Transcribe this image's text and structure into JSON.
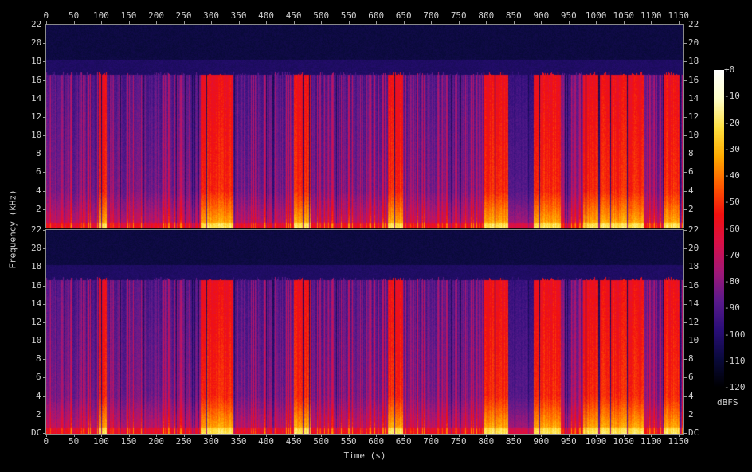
{
  "chart_data": {
    "type": "heatmap",
    "subtype": "spectrogram",
    "channels": 2,
    "xlabel": "Time (s)",
    "ylabel": "Frequency (kHz)",
    "xlim": [
      0,
      1159
    ],
    "ylim": [
      0,
      22
    ],
    "x_ticks": [
      "0",
      "50",
      "100",
      "150",
      "200",
      "250",
      "300",
      "350",
      "400",
      "450",
      "500",
      "550",
      "600",
      "650",
      "700",
      "750",
      "800",
      "850",
      "900",
      "950",
      "1000",
      "1050",
      "1100",
      "1150"
    ],
    "y_ticks_top_panel": [
      "2",
      "4",
      "6",
      "8",
      "10",
      "12",
      "14",
      "16",
      "18",
      "20",
      "22"
    ],
    "y_ticks_bottom_panel": [
      "DC",
      "2",
      "4",
      "6",
      "8",
      "10",
      "12",
      "14",
      "16",
      "18",
      "20",
      "22"
    ],
    "colorbar": {
      "label": "dBFS",
      "range": [
        -120,
        0
      ],
      "ticks": [
        "+0",
        "-10",
        "-20",
        "-30",
        "-40",
        "-50",
        "-60",
        "-70",
        "-80",
        "-90",
        "-100",
        "-110",
        "-120"
      ],
      "colors": [
        "#000000",
        "#0a0a3c",
        "#2a0e78",
        "#5a1a8c",
        "#a01878",
        "#d8104a",
        "#f21010",
        "#ff5a00",
        "#ffaa00",
        "#ffe040",
        "#ffffc8",
        "#ffffff"
      ]
    },
    "lowpass_cutoff_khz": 16.5,
    "loud_segments_s": [
      [
        95,
        110
      ],
      [
        280,
        340
      ],
      [
        450,
        480
      ],
      [
        620,
        648
      ],
      [
        795,
        840
      ],
      [
        885,
        935
      ],
      [
        975,
        1085
      ],
      [
        1120,
        1150
      ]
    ],
    "quiet_segment_s": [
      840,
      885
    ]
  }
}
